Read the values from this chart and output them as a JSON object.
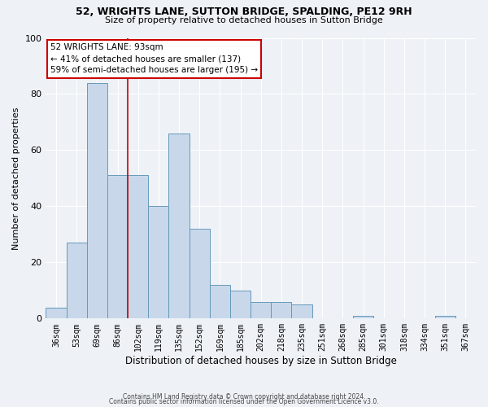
{
  "title": "52, WRIGHTS LANE, SUTTON BRIDGE, SPALDING, PE12 9RH",
  "subtitle": "Size of property relative to detached houses in Sutton Bridge",
  "xlabel": "Distribution of detached houses by size in Sutton Bridge",
  "ylabel": "Number of detached properties",
  "bar_color": "#c8d8ea",
  "bar_edge_color": "#6699bb",
  "categories": [
    "36sqm",
    "53sqm",
    "69sqm",
    "86sqm",
    "102sqm",
    "119sqm",
    "135sqm",
    "152sqm",
    "169sqm",
    "185sqm",
    "202sqm",
    "218sqm",
    "235sqm",
    "251sqm",
    "268sqm",
    "285sqm",
    "301sqm",
    "318sqm",
    "334sqm",
    "351sqm",
    "367sqm"
  ],
  "values": [
    4,
    27,
    84,
    51,
    51,
    40,
    66,
    32,
    12,
    10,
    6,
    6,
    5,
    0,
    0,
    1,
    0,
    0,
    0,
    1,
    0
  ],
  "ylim": [
    0,
    100
  ],
  "yticks": [
    0,
    20,
    40,
    60,
    80,
    100
  ],
  "vline_x_idx": 3.5,
  "vline_color": "#cc0000",
  "annotation_title": "52 WRIGHTS LANE: 93sqm",
  "annotation_line1": "← 41% of detached houses are smaller (137)",
  "annotation_line2": "59% of semi-detached houses are larger (195) →",
  "annotation_box_color": "#ffffff",
  "annotation_box_edge": "#cc0000",
  "background_color": "#eef2f7",
  "grid_color": "#ffffff",
  "footer_line1": "Contains HM Land Registry data © Crown copyright and database right 2024.",
  "footer_line2": "Contains public sector information licensed under the Open Government Licence v3.0."
}
